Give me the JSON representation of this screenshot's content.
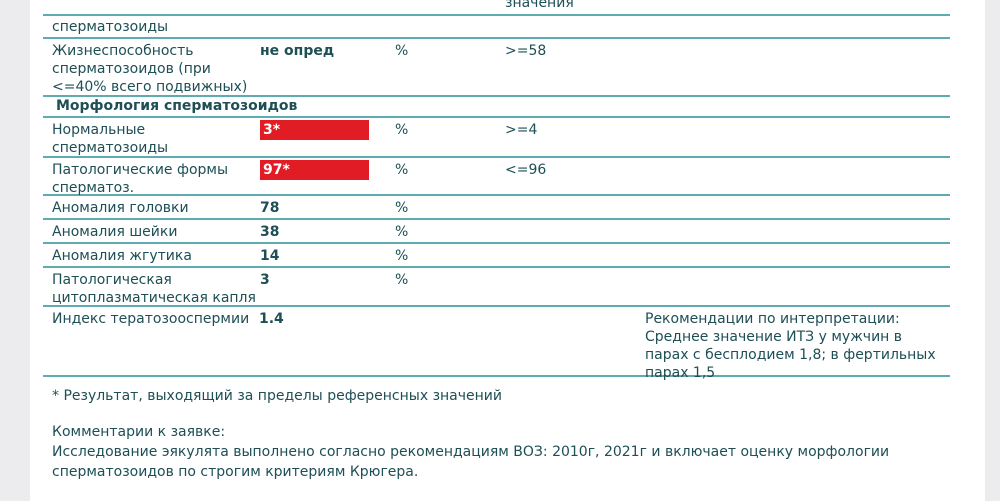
{
  "header_fragment": "значения",
  "rows": [
    {
      "name": "сперматозоиды",
      "value": "",
      "unit": "",
      "ref": ""
    },
    {
      "name": "Жизнеспособность сперматозоидов (при <=40% всего подвижных)",
      "value": "не опред",
      "unit": "%",
      "ref": ">=58"
    },
    {
      "section": "Морфология сперматозоидов"
    },
    {
      "name": "Нормальные сперматозоиды",
      "value": "3*",
      "unit": "%",
      "ref": ">=4",
      "flag": true
    },
    {
      "name": "Патологические формы сперматоз.",
      "value": "97*",
      "unit": "%",
      "ref": "<=96",
      "flag": true
    },
    {
      "name": "Аномалия головки",
      "value": "78",
      "unit": "%",
      "ref": ""
    },
    {
      "name": "Аномалия шейки",
      "value": "38",
      "unit": "%",
      "ref": ""
    },
    {
      "name": "Аномалия жгутика",
      "value": "14",
      "unit": "%",
      "ref": ""
    },
    {
      "name": "Патологическая цитоплазматическая капля",
      "value": "3",
      "unit": "%",
      "ref": ""
    },
    {
      "name": "Индекс тератозооспермии",
      "value": "1.4",
      "unit": "",
      "ref": "",
      "note": "Рекомендации по интерпретации: Среднее значение ИТЗ у мужчин в парах с бесплодием 1,8; в фертильных парах 1,5"
    }
  ],
  "footnote": "* Результат, выходящий за пределы референсных значений",
  "comments_title": "Комментарии к заявке:",
  "comments_text": "Исследование эякулята выполнено согласно рекомендациям ВОЗ: 2010г, 2021г и включает оценку морфологии сперматозоидов по строгим критериям Крюгера.",
  "colors": {
    "text": "#1d4f55",
    "rule": "#5eabb2",
    "flag": "#e21c24"
  }
}
